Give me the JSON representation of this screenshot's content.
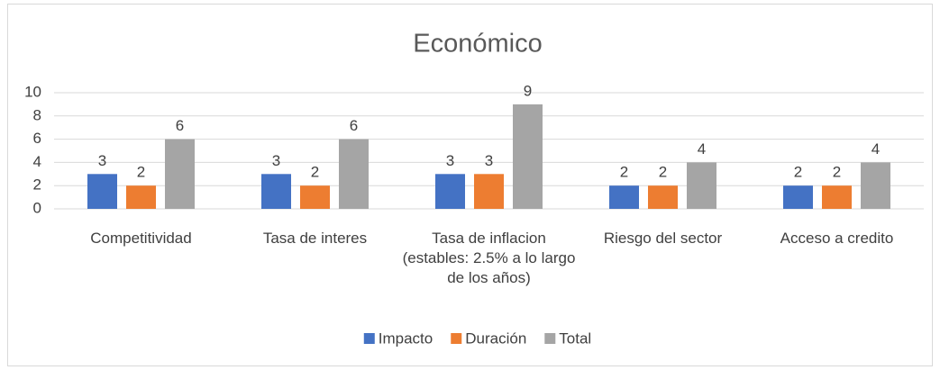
{
  "chart_data": {
    "type": "bar",
    "title": "Económico",
    "categories": [
      "Competitividad",
      "Tasa de interes",
      "Tasa de inflacion (estables: 2.5% a lo largo de los años)",
      "Riesgo del sector",
      "Acceso a credito"
    ],
    "series": [
      {
        "name": "Impacto",
        "color": "#4472c4",
        "values": [
          3,
          3,
          3,
          2,
          2
        ]
      },
      {
        "name": "Duración",
        "color": "#ed7d31",
        "values": [
          2,
          2,
          3,
          2,
          2
        ]
      },
      {
        "name": "Total",
        "color": "#a5a5a5",
        "values": [
          6,
          6,
          9,
          4,
          4
        ]
      }
    ],
    "ylim": [
      0,
      10
    ],
    "yticks": [
      0,
      2,
      4,
      6,
      8,
      10
    ],
    "grid": true,
    "legend": "bottom"
  }
}
